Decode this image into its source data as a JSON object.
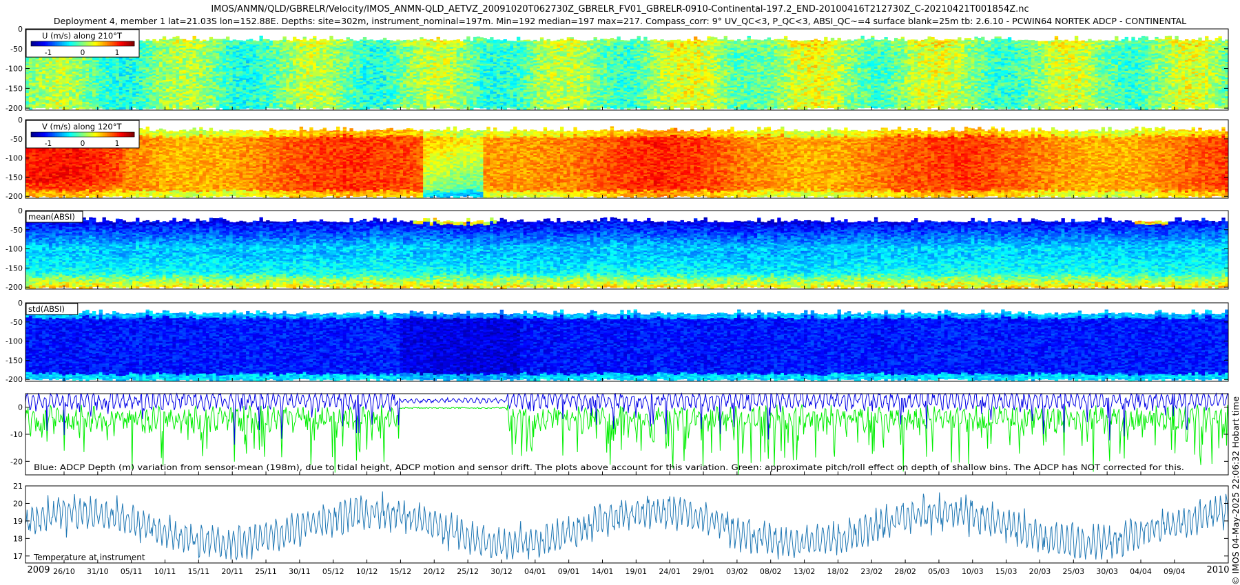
{
  "header": {
    "line1": "IMOS/ANMN/QLD/GBRELR/Velocity/IMOS_ANMN-QLD_AETVZ_20091020T062730Z_GBRELR_FV01_GBRELR-0910-Continental-197.2_END-20100416T212730Z_C-20210421T001854Z.nc",
    "line2": "Deployment 4, member 1 lat=21.03S lon=152.88E. Depths: site=302m, instrument_nominal=197m. Min=192 median=197 max=217. Compass_corr: 9° UV_QC<3, P_QC<3, ABSI_QC~=4 surface blank=25m tb: 2.6.10 - PCWIN64 NORTEK ADCP - CONTINENTAL"
  },
  "side_label": "© IMOS 04-May-2025 22:06:32 Hobart time",
  "colors": {
    "jet": [
      "#00008f",
      "#0000ff",
      "#0080ff",
      "#00ffff",
      "#80ff80",
      "#ffff00",
      "#ff8000",
      "#ff0000",
      "#800000"
    ],
    "depth_series": "#0000e6",
    "pitch_roll_series": "#00ee00",
    "temperature_series": "#1f77b4"
  },
  "chart_data": [
    {
      "type": "heatmap",
      "label": "U (m/s) along 210°T",
      "colorbar_ticks": [
        "-1",
        "0",
        "1"
      ],
      "clim": [
        -1.5,
        1.5
      ],
      "yticks": [
        "0",
        "-50",
        "-100",
        "-150",
        "-200"
      ],
      "ylim": [
        -205,
        0
      ],
      "value_range_shown": [
        -0.4,
        0.5
      ],
      "depth_top": -25
    },
    {
      "type": "heatmap",
      "label": "V (m/s) along 120°T",
      "colorbar_ticks": [
        "-1",
        "0",
        "1"
      ],
      "clim": [
        -1.5,
        1.5
      ],
      "yticks": [
        "0",
        "-50",
        "-100",
        "-150",
        "-200"
      ],
      "ylim": [
        -205,
        0
      ],
      "value_range_shown": [
        -0.2,
        1.3
      ],
      "depth_top": -25
    },
    {
      "type": "heatmap",
      "label": "mean(ABSI)",
      "yticks": [
        "0",
        "-50",
        "-100",
        "-150",
        "-200"
      ],
      "ylim": [
        -205,
        0
      ],
      "depth_top": -25
    },
    {
      "type": "heatmap",
      "label": "std(ABSI)",
      "yticks": [
        "0",
        "-50",
        "-100",
        "-150",
        "-200"
      ],
      "ylim": [
        -205,
        0
      ],
      "depth_top": -25
    },
    {
      "type": "line",
      "yticks": [
        "0",
        "-10",
        "-20"
      ],
      "ylim": [
        -25,
        5
      ],
      "annotation": "Blue: ADCP Depth (m) variation from sensor-mean (198m), due to tidal height, ADCP motion and sensor drift. The plots above account for this variation. Green: approximate pitch/roll effect on depth of shallow bins. The ADCP has NOT corrected for this.",
      "series_shown": [
        "depth variation",
        "pitch/roll effect"
      ],
      "depth_variation_range": [
        -17,
        5
      ],
      "pitch_roll_range": [
        -25,
        1
      ]
    },
    {
      "type": "line",
      "label": "Temperature at instrument",
      "yticks": [
        "21",
        "20",
        "19",
        "18",
        "17"
      ],
      "ylim": [
        16.6,
        21
      ],
      "temperature_range": [
        16.8,
        21.0
      ]
    }
  ],
  "time_axis": {
    "start_date": "2009-10-20",
    "end_date": "2010-04-17",
    "year_labels": [
      "2009",
      "2010"
    ],
    "tick_labels": [
      "26/10",
      "31/10",
      "05/11",
      "10/11",
      "15/11",
      "20/11",
      "25/11",
      "30/11",
      "05/12",
      "10/12",
      "15/12",
      "20/12",
      "25/12",
      "30/12",
      "04/01",
      "09/01",
      "14/01",
      "19/01",
      "24/01",
      "29/01",
      "03/02",
      "08/02",
      "13/02",
      "18/02",
      "23/02",
      "28/02",
      "05/03",
      "10/03",
      "15/03",
      "20/03",
      "25/03",
      "30/03",
      "04/04",
      "09/04"
    ]
  }
}
